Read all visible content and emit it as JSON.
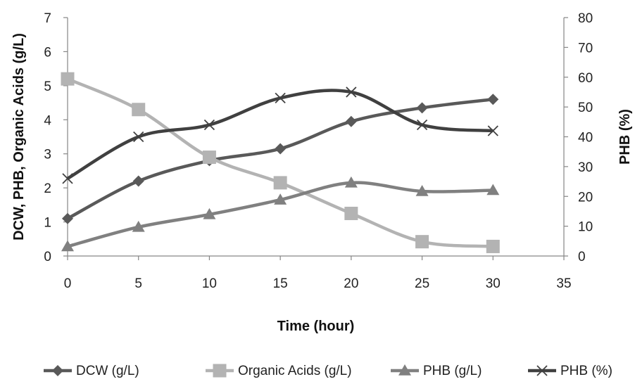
{
  "chart_data": {
    "type": "line",
    "xlabel": "Time (hour)",
    "ylabel_left": "DCW, PHB, Organic Acids (g/L)",
    "ylabel_right": "PHB (%)",
    "xlim": [
      0,
      35
    ],
    "xticks": [
      0,
      5,
      10,
      15,
      20,
      25,
      30,
      35
    ],
    "ylim_left": [
      0,
      7
    ],
    "yticks_left": [
      0,
      1,
      2,
      3,
      4,
      5,
      6,
      7
    ],
    "ylim_right": [
      0,
      80
    ],
    "yticks_right": [
      0,
      10,
      20,
      30,
      40,
      50,
      60,
      70,
      80
    ],
    "grid": false,
    "legend_position": "bottom",
    "x": [
      0,
      5,
      10,
      15,
      20,
      25,
      30
    ],
    "series": [
      {
        "name": "DCW (g/L)",
        "axis": "left",
        "marker": "diamond",
        "color": "#595959",
        "values": [
          1.1,
          2.2,
          2.8,
          3.15,
          3.95,
          4.35,
          4.6
        ]
      },
      {
        "name": "Organic Acids (g/L)",
        "axis": "left",
        "marker": "square",
        "color": "#b3b3b3",
        "values": [
          5.2,
          4.3,
          2.9,
          2.15,
          1.25,
          0.42,
          0.28
        ]
      },
      {
        "name": "PHB (g/L)",
        "axis": "left",
        "marker": "triangle",
        "color": "#808080",
        "values": [
          0.28,
          0.85,
          1.22,
          1.65,
          2.15,
          1.9,
          1.93
        ]
      },
      {
        "name": "PHB (%)",
        "axis": "right",
        "marker": "x",
        "color": "#404040",
        "values": [
          26,
          40,
          44,
          53,
          55,
          44,
          42
        ]
      }
    ]
  }
}
